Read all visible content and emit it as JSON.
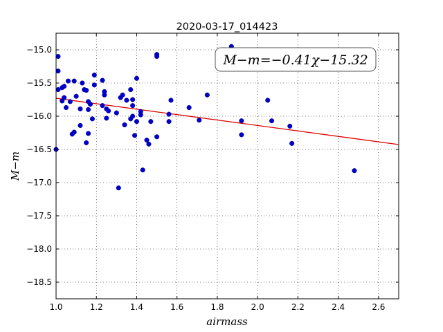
{
  "chart_data": {
    "type": "scatter",
    "title": "2020-03-17_014423",
    "xlabel": "airmass",
    "ylabel": "M−m",
    "xlim": [
      1.0,
      2.7
    ],
    "ylim": [
      -18.75,
      -14.75
    ],
    "y_inverted": true,
    "grid": true,
    "x_ticks": [
      "1.0",
      "1.2",
      "1.4",
      "1.6",
      "1.8",
      "2.0",
      "2.2",
      "2.4",
      "2.6"
    ],
    "y_ticks": [
      "−15.0",
      "−15.5",
      "−16.0",
      "−16.5",
      "−17.0",
      "−17.5",
      "−18.0",
      "−18.5"
    ],
    "annotation": "M−m=−0.41χ−15.32",
    "fit": {
      "slope": -0.41,
      "intercept": -15.32,
      "color": "#dd0000"
    },
    "point_color": "#0000cc",
    "points": [
      [
        1.0,
        -16.5
      ],
      [
        1.01,
        -15.1
      ],
      [
        1.01,
        -15.32
      ],
      [
        1.01,
        -15.6
      ],
      [
        1.03,
        -15.57
      ],
      [
        1.03,
        -15.77
      ],
      [
        1.04,
        -15.55
      ],
      [
        1.04,
        -15.72
      ],
      [
        1.05,
        -15.87
      ],
      [
        1.06,
        -15.47
      ],
      [
        1.07,
        -15.78
      ],
      [
        1.08,
        -16.27
      ],
      [
        1.09,
        -16.24
      ],
      [
        1.09,
        -15.47
      ],
      [
        1.1,
        -15.7
      ],
      [
        1.12,
        -15.89
      ],
      [
        1.12,
        -16.14
      ],
      [
        1.13,
        -15.5
      ],
      [
        1.14,
        -15.6
      ],
      [
        1.15,
        -16.4
      ],
      [
        1.15,
        -15.61
      ],
      [
        1.16,
        -15.9
      ],
      [
        1.16,
        -15.78
      ],
      [
        1.16,
        -16.26
      ],
      [
        1.17,
        -15.82
      ],
      [
        1.18,
        -16.04
      ],
      [
        1.19,
        -15.38
      ],
      [
        1.19,
        -15.53
      ],
      [
        1.23,
        -15.84
      ],
      [
        1.23,
        -15.46
      ],
      [
        1.24,
        -15.63
      ],
      [
        1.24,
        -15.68
      ],
      [
        1.25,
        -15.89
      ],
      [
        1.25,
        -16.03
      ],
      [
        1.26,
        -15.92
      ],
      [
        1.3,
        -15.95
      ],
      [
        1.31,
        -17.08
      ],
      [
        1.32,
        -15.72
      ],
      [
        1.33,
        -15.68
      ],
      [
        1.34,
        -16.13
      ],
      [
        1.35,
        -15.76
      ],
      [
        1.37,
        -15.6
      ],
      [
        1.37,
        -16.04
      ],
      [
        1.38,
        -15.84
      ],
      [
        1.38,
        -15.75
      ],
      [
        1.38,
        -16.0
      ],
      [
        1.39,
        -16.29
      ],
      [
        1.4,
        -16.08
      ],
      [
        1.4,
        -15.43
      ],
      [
        1.42,
        -15.98
      ],
      [
        1.42,
        -15.93
      ],
      [
        1.43,
        -16.81
      ],
      [
        1.45,
        -16.36
      ],
      [
        1.46,
        -16.42
      ],
      [
        1.47,
        -16.08
      ],
      [
        1.5,
        -15.07
      ],
      [
        1.5,
        -15.1
      ],
      [
        1.5,
        -16.31
      ],
      [
        1.56,
        -15.97
      ],
      [
        1.56,
        -16.08
      ],
      [
        1.57,
        -15.76
      ],
      [
        1.66,
        -15.87
      ],
      [
        1.71,
        -16.06
      ],
      [
        1.75,
        -15.68
      ],
      [
        1.87,
        -14.95
      ],
      [
        1.92,
        -16.07
      ],
      [
        1.92,
        -16.28
      ],
      [
        2.05,
        -15.76
      ],
      [
        2.07,
        -16.07
      ],
      [
        2.16,
        -16.15
      ],
      [
        2.17,
        -16.41
      ],
      [
        2.48,
        -16.82
      ]
    ]
  }
}
